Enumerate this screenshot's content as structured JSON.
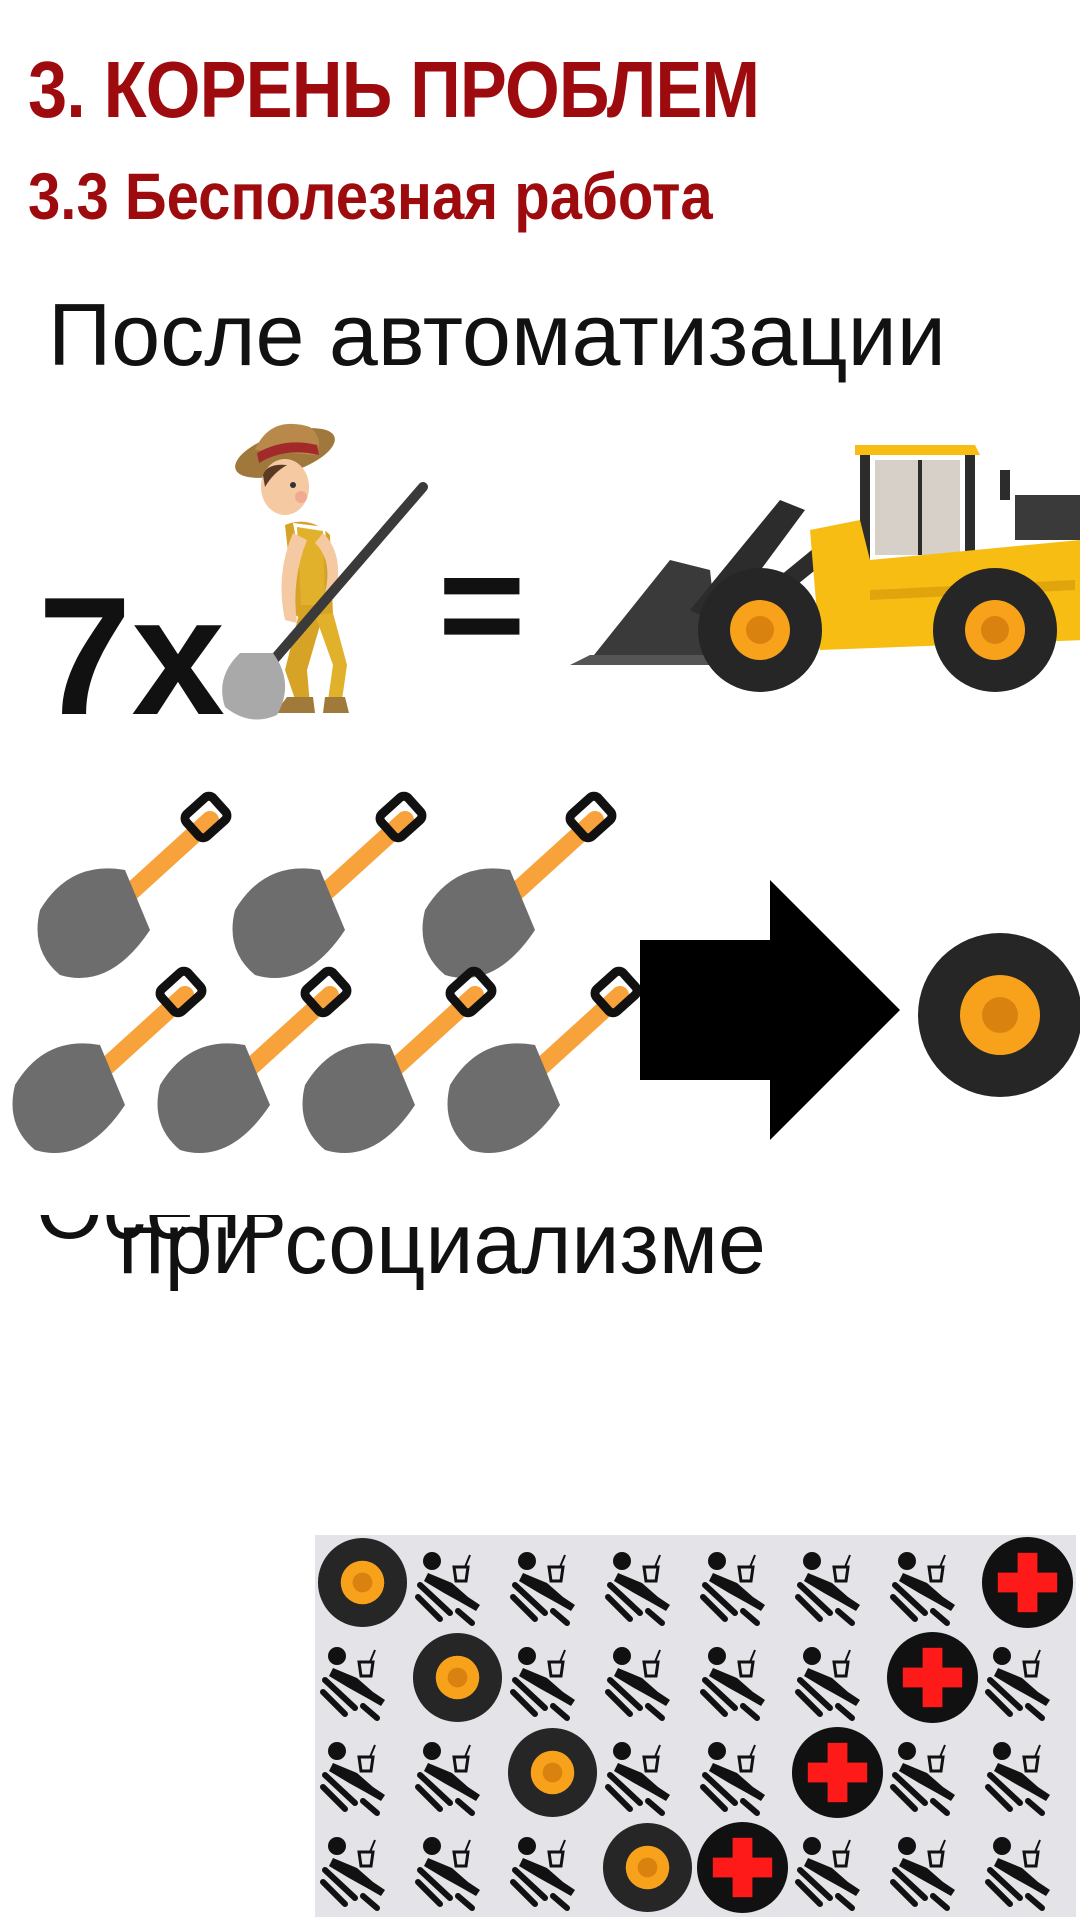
{
  "slide": {
    "heading": "3. КОРЕНЬ ПРОБЛЕМ",
    "subheading": "3.3 Бесполезная работа",
    "after_label": "После автоматизации",
    "multiplier": "7x",
    "equals": "=",
    "partial_label": "Осень",
    "socialism_label": "при социализме"
  },
  "icons": {
    "worker": "digging-worker-icon",
    "loader": "front-loader-icon",
    "shovel": "shovel-icon",
    "arrow": "right-arrow-icon",
    "wheel": "wheel-icon",
    "relaxing": "reclining-person-icon",
    "medical": "red-cross-icon"
  },
  "grid": [
    [
      "wheel",
      "relax",
      "relax",
      "relax",
      "relax",
      "relax",
      "relax",
      "cross"
    ],
    [
      "relax",
      "wheel",
      "relax",
      "relax",
      "relax",
      "relax",
      "cross",
      "relax"
    ],
    [
      "relax",
      "relax",
      "wheel",
      "relax",
      "relax",
      "cross",
      "relax",
      "relax"
    ],
    [
      "relax",
      "relax",
      "relax",
      "wheel",
      "cross",
      "relax",
      "relax",
      "relax"
    ]
  ],
  "colors": {
    "heading": "#9e0b0e",
    "loader_yellow": "#f7bd12",
    "shovel_handle": "#f7a23a",
    "shovel_blade": "#6d6d6d",
    "cross_red": "#ff1a1a",
    "grid_bg": "#e4e4e8"
  }
}
